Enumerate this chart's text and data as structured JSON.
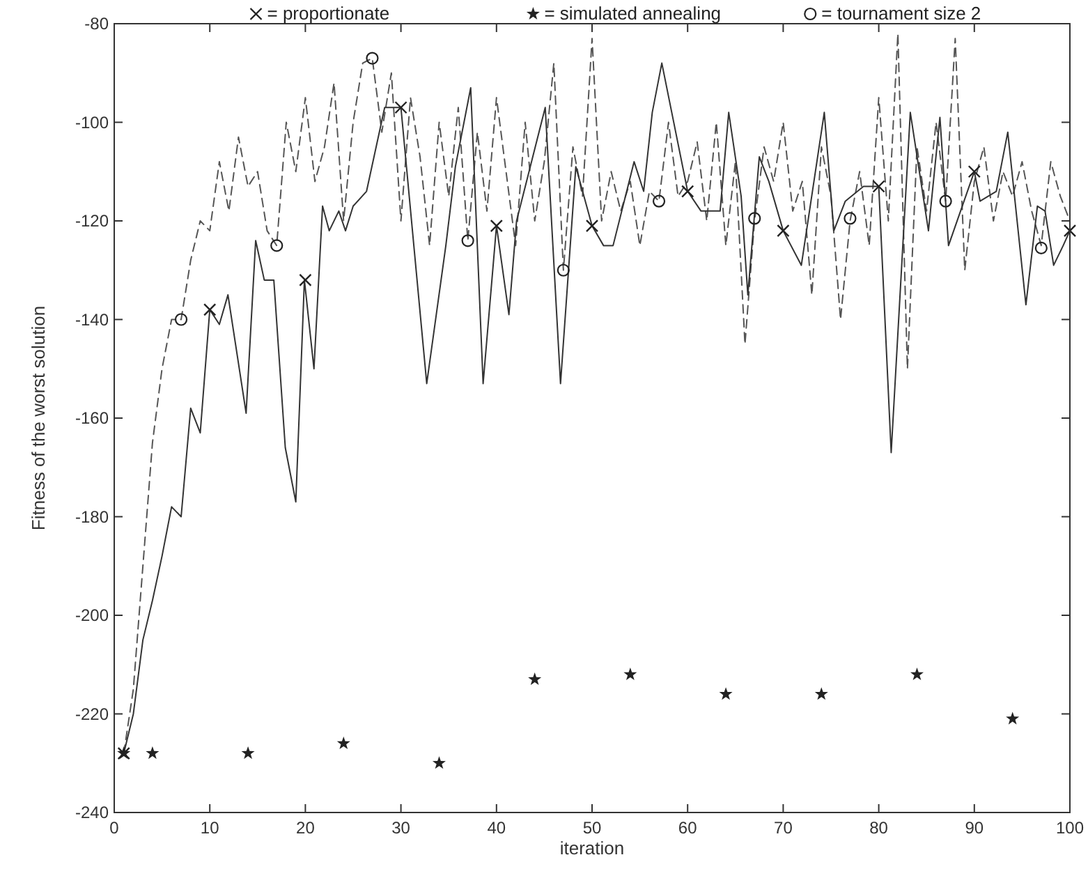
{
  "chart_data": {
    "type": "line",
    "xlabel": "iteration",
    "ylabel": "Fitness of the worst solution",
    "xlim": [
      0,
      100
    ],
    "ylim": [
      -240,
      -80
    ],
    "xticks": [
      0,
      10,
      20,
      30,
      40,
      50,
      60,
      70,
      80,
      90,
      100
    ],
    "yticks": [
      -240,
      -220,
      -200,
      -180,
      -160,
      -140,
      -120,
      -100,
      -80
    ],
    "grid": false,
    "legend": "top",
    "series": [
      {
        "color": "#555555",
        "line_style": "dashed",
        "marker": "none",
        "x": [
          1,
          2,
          3,
          4,
          5,
          6,
          7,
          8,
          9,
          10,
          11,
          12,
          13,
          14,
          15,
          16,
          17,
          18,
          19,
          20,
          21,
          22,
          23,
          24,
          25,
          26,
          27,
          28,
          29,
          30,
          31,
          32,
          33,
          34,
          35,
          36,
          37,
          38,
          39,
          40,
          41,
          42,
          43,
          44,
          45,
          46,
          47,
          48,
          49,
          50,
          51,
          52,
          53,
          54,
          55,
          56,
          57,
          58,
          59,
          60,
          61,
          62,
          63,
          64,
          65,
          66,
          67,
          68,
          69,
          70,
          71,
          72,
          73,
          74,
          75,
          76,
          77,
          78,
          79,
          80,
          81,
          82,
          83,
          84,
          85,
          86,
          87,
          88,
          89,
          90,
          91,
          92,
          93,
          94,
          95,
          96,
          97,
          98,
          99,
          100
        ],
        "values": [
          -228,
          -215,
          -190,
          -165,
          -150,
          -140,
          -140,
          -128,
          -120,
          -122,
          -108,
          -118,
          -103,
          -113,
          -110,
          -122,
          -125,
          -100,
          -110,
          -95,
          -112,
          -105,
          -92,
          -120,
          -100,
          -88,
          -87,
          -102,
          -90,
          -120,
          -95,
          -107,
          -125,
          -100,
          -115,
          -97,
          -124,
          -102,
          -118,
          -95,
          -110,
          -125,
          -100,
          -120,
          -108,
          -88,
          -130,
          -105,
          -115,
          -83,
          -120,
          -110,
          -118,
          -112,
          -125,
          -114,
          -116,
          -100,
          -115,
          -112,
          -104,
          -120,
          -100,
          -125,
          -108,
          -145,
          -120,
          -105,
          -112,
          -100,
          -118,
          -112,
          -135,
          -105,
          -115,
          -140,
          -120,
          -110,
          -125,
          -95,
          -120,
          -82,
          -150,
          -105,
          -118,
          -100,
          -116,
          -83,
          -130,
          -112,
          -105,
          -120,
          -110,
          -115,
          -108,
          -118,
          -125,
          -108,
          -115,
          -120
        ]
      },
      {
        "color": "#333333",
        "line_style": "solid",
        "marker": "none",
        "x": [
          1,
          2,
          3,
          4,
          5,
          6,
          7,
          8,
          9,
          10,
          11,
          11.9,
          13.8,
          14.8,
          15.7,
          16.7,
          17.9,
          19,
          19.9,
          20.9,
          21.8,
          22.5,
          23.5,
          24.2,
          25,
          26.4,
          28.3,
          30,
          32.7,
          34.7,
          35.7,
          37.3,
          38.6,
          40,
          41.3,
          42.1,
          45.1,
          46.7,
          48.3,
          50,
          51.2,
          52.2,
          54.4,
          55.4,
          56.3,
          57.3,
          60,
          61.4,
          63.4,
          64.3,
          65.6,
          66.3,
          67.5,
          68.5,
          70,
          71.9,
          74.3,
          75.3,
          76.5,
          78.4,
          80,
          81.3,
          83.3,
          85.2,
          86.4,
          87.3,
          90,
          90.6,
          92.3,
          93.5,
          95.4,
          96.6,
          97.4,
          98.3,
          99.3,
          100
        ],
        "values": [
          -228,
          -220,
          -205,
          -197,
          -188,
          -178,
          -180,
          -158,
          -163,
          -138,
          -141,
          -135,
          -159,
          -124,
          -132,
          -132,
          -166,
          -177,
          -132,
          -150,
          -117,
          -122,
          -118,
          -122,
          -117,
          -114,
          -97,
          -97,
          -153,
          -125,
          -109,
          -93,
          -153,
          -121,
          -139,
          -120,
          -97,
          -153,
          -109,
          -121,
          -125,
          -125,
          -108,
          -114,
          -98,
          -88,
          -114,
          -118,
          -118,
          -98,
          -115,
          -135,
          -107,
          -112,
          -122,
          -129,
          -98,
          -122,
          -116,
          -113,
          -113,
          -167,
          -98,
          -122,
          -99,
          -125,
          -110,
          -116,
          -114,
          -102,
          -137,
          -117,
          -118,
          -129,
          -125,
          -122
        ]
      },
      {
        "type": "scatter",
        "name": "= proportionate",
        "color": "#222222",
        "marker": "cross",
        "x": [
          1,
          10,
          20,
          30,
          40,
          50,
          60,
          70,
          80,
          90,
          100
        ],
        "values": [
          -228,
          -138,
          -132,
          -97,
          -121,
          -121,
          -114,
          -122,
          -113,
          -110,
          -122
        ]
      },
      {
        "type": "scatter",
        "name": "= simulated annealing",
        "color": "#222222",
        "marker": "star",
        "x": [
          1,
          4,
          14,
          24,
          34,
          44,
          54,
          64,
          74,
          84,
          94
        ],
        "values": [
          -228,
          -228,
          -228,
          -226,
          -230,
          -213,
          -212,
          -216,
          -216,
          -212,
          -221
        ]
      },
      {
        "type": "scatter",
        "name": "= tournament size 2",
        "color": "#222222",
        "marker": "circle",
        "x": [
          7,
          17,
          27,
          37,
          47,
          57,
          67,
          77,
          87,
          97
        ],
        "values": [
          -140,
          -125,
          -87,
          -124,
          -130,
          -116,
          -119.5,
          -119.5,
          -116,
          -125.5
        ]
      }
    ]
  }
}
